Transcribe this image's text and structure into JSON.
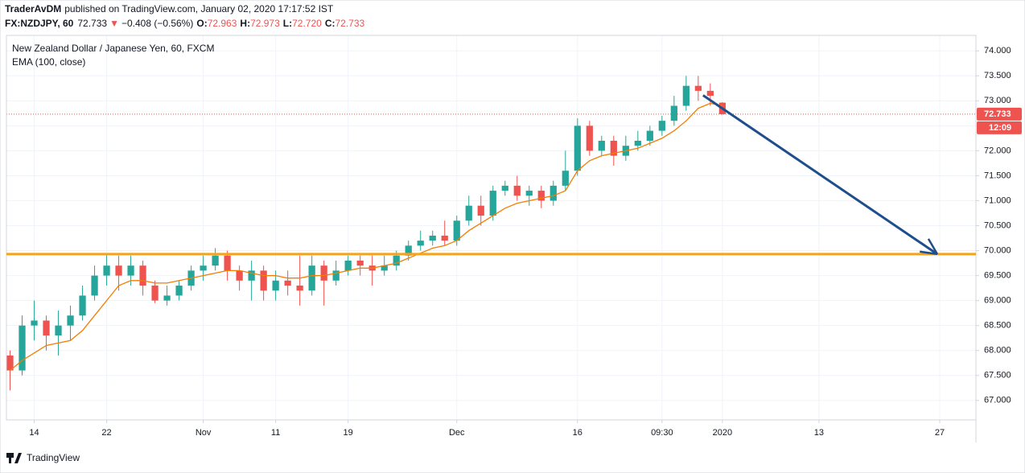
{
  "header": {
    "author": "TraderAvDM",
    "published": "published on TradingView.com, January 02, 2020 17:17:52 IST",
    "symbol": "FX:NZDJPY, 60",
    "last": "72.733",
    "change_arrow": "▼",
    "change": "−0.408 (−0.56%)",
    "ohlc": [
      {
        "label": "O:",
        "value": "72.963"
      },
      {
        "label": "H:",
        "value": "72.973"
      },
      {
        "label": "L:",
        "value": "72.720"
      },
      {
        "label": "C:",
        "value": "72.733"
      }
    ]
  },
  "footer": {
    "brand": "TradingView"
  },
  "chart_data": {
    "type": "candlestick",
    "title": "New Zealand Dollar / Japanese Yen, 60, FXCM",
    "x": [
      -2,
      -1,
      0,
      1,
      2,
      3,
      4,
      5,
      6,
      7,
      8,
      9,
      10,
      11,
      12,
      13,
      14,
      15,
      16,
      17,
      18,
      19,
      20,
      21,
      22,
      23,
      24,
      25,
      26,
      27,
      28,
      29,
      30,
      31,
      32,
      33,
      34,
      35,
      36,
      37,
      38,
      39,
      40,
      41,
      42,
      43,
      44,
      45,
      46,
      47,
      48,
      49,
      50,
      51,
      52,
      53,
      54,
      55,
      56,
      57
    ],
    "open": [
      67.9,
      67.6,
      68.5,
      68.6,
      68.3,
      68.5,
      68.7,
      69.1,
      69.5,
      69.7,
      69.5,
      69.7,
      69.3,
      69.0,
      69.1,
      69.3,
      69.6,
      69.7,
      69.9,
      69.6,
      69.4,
      69.6,
      69.2,
      69.4,
      69.3,
      69.2,
      69.7,
      69.4,
      69.6,
      69.8,
      69.7,
      69.6,
      69.7,
      69.9,
      70.1,
      70.2,
      70.3,
      70.2,
      70.6,
      70.9,
      70.7,
      71.2,
      71.3,
      71.1,
      71.2,
      71.0,
      71.3,
      71.6,
      72.5,
      72.0,
      72.2,
      71.9,
      72.1,
      72.2,
      72.4,
      72.6,
      72.9,
      73.3,
      73.2,
      72.963
    ],
    "high": [
      68.0,
      68.7,
      69.0,
      68.7,
      68.8,
      68.9,
      69.3,
      69.7,
      69.95,
      69.9,
      69.9,
      69.8,
      69.4,
      69.3,
      69.4,
      69.7,
      69.9,
      70.05,
      70.0,
      69.7,
      69.8,
      69.7,
      69.6,
      69.6,
      69.9,
      69.9,
      69.8,
      69.8,
      69.9,
      69.9,
      69.9,
      69.9,
      70.0,
      70.2,
      70.4,
      70.4,
      70.6,
      70.7,
      71.1,
      71.1,
      71.3,
      71.4,
      71.5,
      71.3,
      71.3,
      71.4,
      72.0,
      72.65,
      72.6,
      72.3,
      72.3,
      72.3,
      72.4,
      72.5,
      72.7,
      73.1,
      73.5,
      73.5,
      73.35,
      72.973
    ],
    "low": [
      67.2,
      67.5,
      68.2,
      68.0,
      67.9,
      68.2,
      68.6,
      69.0,
      69.3,
      69.2,
      69.3,
      69.1,
      68.95,
      68.9,
      69.0,
      69.2,
      69.4,
      69.6,
      69.4,
      69.2,
      69.0,
      69.0,
      69.0,
      69.1,
      68.9,
      69.1,
      68.9,
      69.3,
      69.5,
      69.5,
      69.3,
      69.5,
      69.6,
      69.8,
      70.0,
      70.1,
      70.1,
      70.1,
      70.5,
      70.5,
      70.6,
      71.1,
      71.0,
      70.9,
      70.85,
      70.9,
      71.2,
      71.5,
      71.9,
      71.9,
      71.7,
      71.8,
      72.0,
      72.1,
      72.3,
      72.5,
      72.8,
      73.0,
      72.9,
      72.72
    ],
    "close": [
      67.6,
      68.5,
      68.6,
      68.3,
      68.5,
      68.7,
      69.1,
      69.5,
      69.7,
      69.5,
      69.7,
      69.3,
      69.0,
      69.1,
      69.3,
      69.6,
      69.7,
      69.9,
      69.6,
      69.4,
      69.6,
      69.2,
      69.4,
      69.3,
      69.2,
      69.7,
      69.4,
      69.6,
      69.8,
      69.7,
      69.6,
      69.7,
      69.9,
      70.1,
      70.2,
      70.3,
      70.2,
      70.6,
      70.9,
      70.7,
      71.2,
      71.3,
      71.1,
      71.2,
      71.0,
      71.3,
      71.6,
      72.5,
      72.0,
      72.2,
      71.9,
      72.1,
      72.2,
      72.4,
      72.6,
      72.9,
      73.3,
      73.2,
      73.1,
      72.733
    ],
    "up_color": "#26a69a",
    "down_color": "#ef5350",
    "series": [
      {
        "name": "EMA (100, close)",
        "color": "#f57c00",
        "values": [
          67.6,
          67.8,
          67.95,
          68.1,
          68.15,
          68.2,
          68.4,
          68.7,
          69.0,
          69.3,
          69.4,
          69.4,
          69.35,
          69.35,
          69.4,
          69.45,
          69.5,
          69.55,
          69.6,
          69.6,
          69.55,
          69.5,
          69.5,
          69.45,
          69.45,
          69.5,
          69.5,
          69.55,
          69.6,
          69.65,
          69.65,
          69.7,
          69.75,
          69.85,
          69.95,
          70.05,
          70.1,
          70.2,
          70.4,
          70.55,
          70.7,
          70.85,
          70.95,
          71.0,
          71.05,
          71.1,
          71.2,
          71.6,
          71.8,
          71.9,
          71.95,
          72.0,
          72.05,
          72.15,
          72.25,
          72.4,
          72.6,
          72.85,
          72.95,
          72.9
        ]
      }
    ],
    "xlim": [
      -2.3,
      78
    ],
    "ylim": [
      66.61,
      74.31
    ],
    "xticks": [
      {
        "value": 0,
        "label": "14"
      },
      {
        "value": 6,
        "label": "22"
      },
      {
        "value": 14,
        "label": "Nov"
      },
      {
        "value": 20,
        "label": "11"
      },
      {
        "value": 26,
        "label": "19"
      },
      {
        "value": 35,
        "label": "Dec"
      },
      {
        "value": 45,
        "label": "16"
      },
      {
        "value": 52,
        "label": "09:30"
      },
      {
        "value": 57,
        "label": "2020"
      },
      {
        "value": 65,
        "label": "13"
      },
      {
        "value": 75,
        "label": "27"
      }
    ],
    "yticks": [
      {
        "value": 67,
        "label": "67.000"
      },
      {
        "value": 67.5,
        "label": "67.500"
      },
      {
        "value": 68,
        "label": "68.000"
      },
      {
        "value": 68.5,
        "label": "68.500"
      },
      {
        "value": 69,
        "label": "69.000"
      },
      {
        "value": 69.5,
        "label": "69.500"
      },
      {
        "value": 70,
        "label": "70.000"
      },
      {
        "value": 70.5,
        "label": "70.500"
      },
      {
        "value": 71,
        "label": "71.000"
      },
      {
        "value": 71.5,
        "label": "71.500"
      },
      {
        "value": 72,
        "label": "72.000"
      },
      {
        "value": 72.5,
        "label": "72.500"
      },
      {
        "value": 73,
        "label": "73.000"
      },
      {
        "value": 73.5,
        "label": "73.500"
      },
      {
        "value": 74,
        "label": "74.000"
      }
    ],
    "grid": true,
    "last_price": 72.733,
    "last_price_color": "#ef5350",
    "countdown": "12:09",
    "horizontal_line": {
      "value": 69.93,
      "color": "#f5a31a"
    },
    "arrow": {
      "x": [
        55.4,
        74.8
      ],
      "y": [
        73.11,
        69.93
      ],
      "color": "#1f4e8c"
    }
  }
}
